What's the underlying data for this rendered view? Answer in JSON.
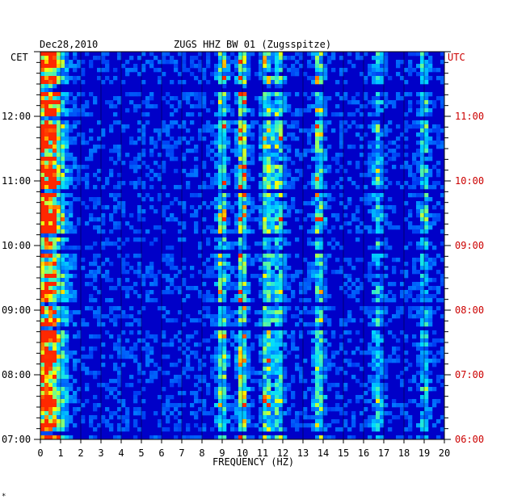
{
  "header": {
    "date": "Dec28,2010",
    "station": "ZUGS HHZ BW 01 (Zugsspitze)",
    "left_zone": "CET",
    "right_zone": "UTC"
  },
  "footer_mark": "*",
  "chart_data": {
    "type": "heatmap",
    "title": "ZUGS HHZ BW 01 (Zugsspitze)",
    "date": "Dec28,2010",
    "xlabel": "FREQUENCY (HZ)",
    "xlim": [
      0,
      20
    ],
    "x_ticks": [
      "0",
      "1",
      "2",
      "3",
      "4",
      "5",
      "6",
      "7",
      "8",
      "9",
      "10",
      "11",
      "12",
      "13",
      "14",
      "15",
      "16",
      "17",
      "18",
      "19",
      "20"
    ],
    "y_left_label": "CET",
    "y_right_label": "UTC",
    "y_time_range_cet": [
      "07:00",
      "13:00"
    ],
    "y_left_ticks": [
      "07:00",
      "08:00",
      "09:00",
      "10:00",
      "11:00",
      "12:00"
    ],
    "y_right_ticks": [
      "06:00",
      "07:00",
      "08:00",
      "09:00",
      "10:00",
      "11:00"
    ],
    "grid": true,
    "colors": {
      "low": "#0000c8",
      "mid": "#00c8ff",
      "high": "#ffff00",
      "peak": "#ff0000",
      "left_axis_text": "#000000",
      "right_axis_text": "#cc0000"
    },
    "energy_bands_hz": [
      {
        "center": 0.3,
        "strength": 0.9
      },
      {
        "center": 9.0,
        "strength": 0.55
      },
      {
        "center": 10.0,
        "strength": 0.6
      },
      {
        "center": 11.2,
        "strength": 0.55
      },
      {
        "center": 11.8,
        "strength": 0.5
      },
      {
        "center": 13.8,
        "strength": 0.5
      },
      {
        "center": 16.7,
        "strength": 0.35
      },
      {
        "center": 19.0,
        "strength": 0.35
      }
    ]
  }
}
